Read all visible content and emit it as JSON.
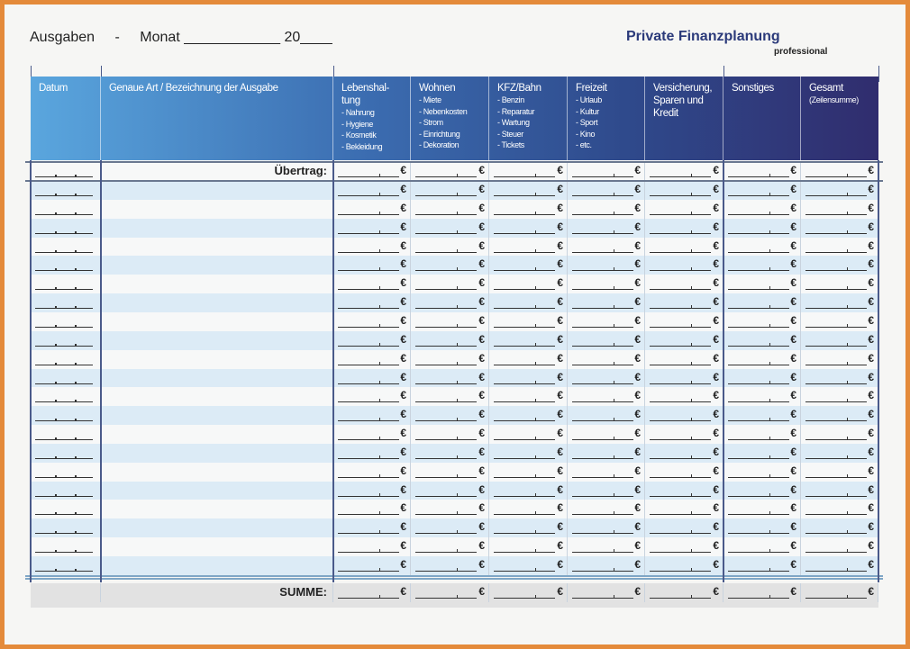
{
  "header": {
    "title_parts": [
      "Ausgaben",
      "-",
      "Monat ____________ 20____"
    ],
    "brand": "Private Finanzplanung",
    "brand_sub": "professional"
  },
  "colors": {
    "border": "#e48a3a",
    "header_start": "#5aa6de",
    "header_end": "#302d6e",
    "row_alt": "#dcebf6"
  },
  "columns": [
    {
      "title": "Datum",
      "items": []
    },
    {
      "title": "Genaue Art / Bezeichnung  der Ausgabe",
      "items": []
    },
    {
      "title": "Lebenshal- tung",
      "items": [
        "- Nahrung",
        "- Hygiene",
        "- Kosmetik",
        "- Bekleidung"
      ]
    },
    {
      "title": "Wohnen",
      "items": [
        "- Miete",
        "- Nebenkosten",
        "- Strom",
        "- Einrichtung",
        "- Dekoration"
      ]
    },
    {
      "title": "KFZ/Bahn",
      "items": [
        "- Benzin",
        "- Reparatur",
        "- Wartung",
        "- Steuer",
        "- Tickets"
      ]
    },
    {
      "title": "Freizeit",
      "items": [
        "- Urlaub",
        "- Kultur",
        "- Sport",
        "- Kino",
        "- etc."
      ]
    },
    {
      "title": "Versicherung, Sparen und Kredit",
      "items": []
    },
    {
      "title": "Sonstiges",
      "items": []
    },
    {
      "title": "Gesamt",
      "items": [
        "(Zeilensumme)"
      ]
    }
  ],
  "table": {
    "carryover_label": "Übertrag:",
    "sum_label": "SUMME:",
    "currency": "€"
  }
}
